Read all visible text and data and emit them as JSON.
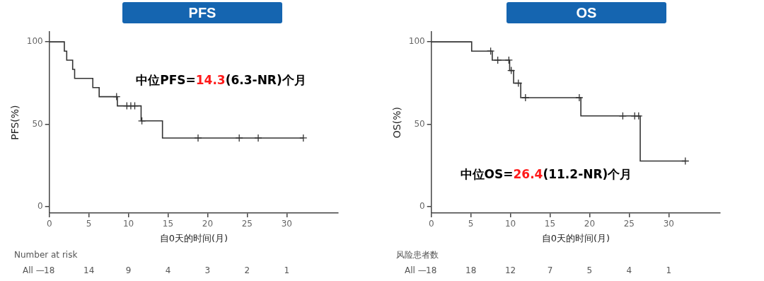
{
  "chart_data": [
    {
      "type": "step",
      "title": "PFS",
      "xlabel": "自0天的时间(月)",
      "ylabel": "PFS(%)",
      "xlim": [
        0,
        36.5
      ],
      "xticks": [
        0,
        5,
        10,
        15,
        20,
        25,
        30
      ],
      "ylim": [
        -4,
        106
      ],
      "yticks": [
        0,
        50,
        100
      ],
      "grid": false,
      "legend": false,
      "series": [
        {
          "color": "#333333",
          "marker": "none",
          "x": [
            0,
            1.9,
            2.2,
            2.95,
            3.2,
            5.5,
            6.3,
            8.6,
            11.6,
            14.3,
            32.1
          ],
          "values": [
            100,
            94.4,
            88.9,
            83.3,
            77.8,
            72.2,
            66.7,
            61.1,
            52,
            41.6,
            41.6
          ]
        },
        {
          "type": "scatter",
          "color": "#333333",
          "marker": "cross",
          "x": [
            8.5,
            9.8,
            10.3,
            10.8,
            11.7,
            18.8,
            24.0,
            26.4,
            32.1
          ],
          "values": [
            66.7,
            61.1,
            61.1,
            61.1,
            52,
            41.6,
            41.6,
            41.6,
            41.6
          ]
        }
      ],
      "annotations": [
        "中位PFS=14.3(6.3-NR)个月",
        "Number at risk",
        "All —",
        "18",
        "14",
        "9",
        "4",
        "3",
        "2",
        "1"
      ]
    },
    {
      "type": "step",
      "title": "OS",
      "xlabel": "自0天的时间(月)",
      "ylabel": "OS(%)",
      "xlim": [
        0,
        36.5
      ],
      "xticks": [
        0,
        5,
        10,
        15,
        20,
        25,
        30
      ],
      "ylim": [
        -4,
        106
      ],
      "yticks": [
        0,
        50,
        100
      ],
      "grid": false,
      "legend": false,
      "series": [
        {
          "color": "#333333",
          "marker": "none",
          "x": [
            0,
            5.1,
            7.7,
            9.9,
            10.4,
            11.3,
            18.9,
            26.4,
            32.1
          ],
          "values": [
            100,
            94.4,
            88.9,
            82.6,
            74.9,
            66.1,
            55,
            27.6,
            27.6
          ]
        },
        {
          "type": "scatter",
          "color": "#333333",
          "marker": "cross",
          "x": [
            7.5,
            8.4,
            9.8,
            10.1,
            11.0,
            11.9,
            18.7,
            24.2,
            25.7,
            26.2,
            32.1
          ],
          "values": [
            94.4,
            88.9,
            88.9,
            82.6,
            74.9,
            66.1,
            66.1,
            55,
            55,
            55,
            27.6
          ]
        }
      ],
      "annotations": [
        "中位OS=26.4(11.2-NR)个月",
        "风险患者数",
        "All —",
        "18",
        "18",
        "12",
        "7",
        "5",
        "4",
        "1"
      ]
    }
  ]
}
